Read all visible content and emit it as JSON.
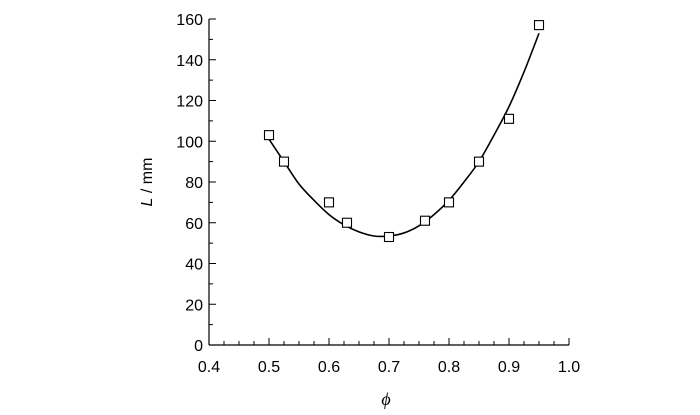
{
  "chart_data": {
    "type": "scatter",
    "xlabel": "ϕ",
    "ylabel_symbol": "L",
    "ylabel_unit": " / mm",
    "xlim": [
      0.4,
      1.0
    ],
    "ylim": [
      0,
      160
    ],
    "xticks": [
      0.4,
      0.5,
      0.6,
      0.7,
      0.8,
      0.9,
      1.0
    ],
    "xtick_labels": [
      "0.4",
      "0.5",
      "0.6",
      "0.7",
      "0.8",
      "0.9",
      "1.0"
    ],
    "yticks": [
      0,
      20,
      40,
      60,
      80,
      100,
      120,
      140,
      160
    ],
    "ytick_labels": [
      "0",
      "20",
      "40",
      "60",
      "80",
      "100",
      "120",
      "140",
      "160"
    ],
    "grid": false,
    "legend": "none",
    "series": [
      {
        "marker": "open-square",
        "x": [
          0.5,
          0.525,
          0.6,
          0.63,
          0.7,
          0.76,
          0.8,
          0.85,
          0.9,
          0.95
        ],
        "y": [
          103,
          90,
          70,
          60,
          53,
          61,
          70,
          90,
          111,
          157
        ]
      }
    ],
    "fit_curve": {
      "style": "solid",
      "x": [
        0.5,
        0.525,
        0.55,
        0.575,
        0.6,
        0.625,
        0.65,
        0.675,
        0.7,
        0.725,
        0.75,
        0.775,
        0.8,
        0.825,
        0.85,
        0.875,
        0.9,
        0.925,
        0.95
      ],
      "y": [
        101,
        90,
        79,
        71,
        64,
        59,
        55.5,
        53.5,
        53.5,
        55,
        58.5,
        64,
        71,
        80,
        90,
        103,
        117,
        134,
        153
      ]
    }
  }
}
